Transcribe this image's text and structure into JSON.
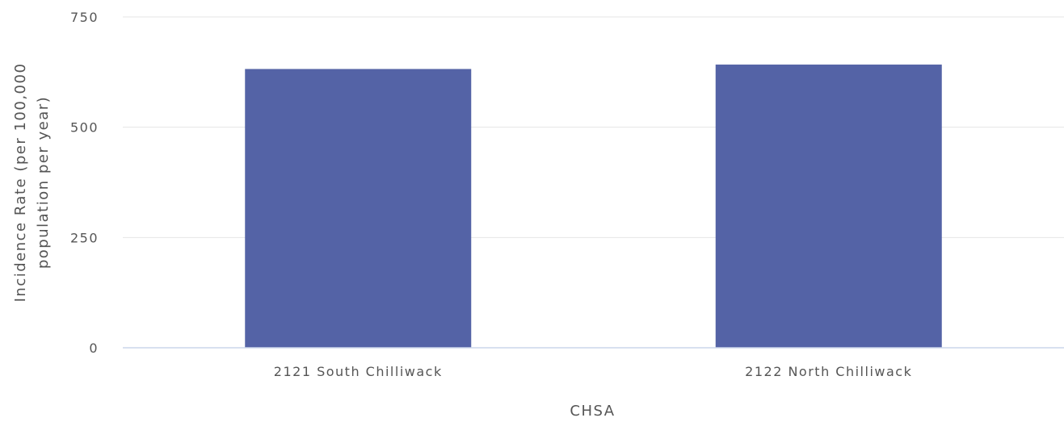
{
  "chart_data": {
    "type": "bar",
    "categories": [
      "2121 South Chilliwack",
      "2122 North Chilliwack"
    ],
    "series": [
      {
        "values": [
          632,
          642
        ],
        "color": "#5463a6"
      }
    ],
    "xlabel": "CHSA",
    "ylabel_lines": [
      "Incidence Rate (per 100,000",
      "population per year)"
    ],
    "ylim": [
      0,
      750
    ],
    "yticks": [
      0,
      250,
      500,
      750
    ],
    "grid": true,
    "legend": "none"
  }
}
